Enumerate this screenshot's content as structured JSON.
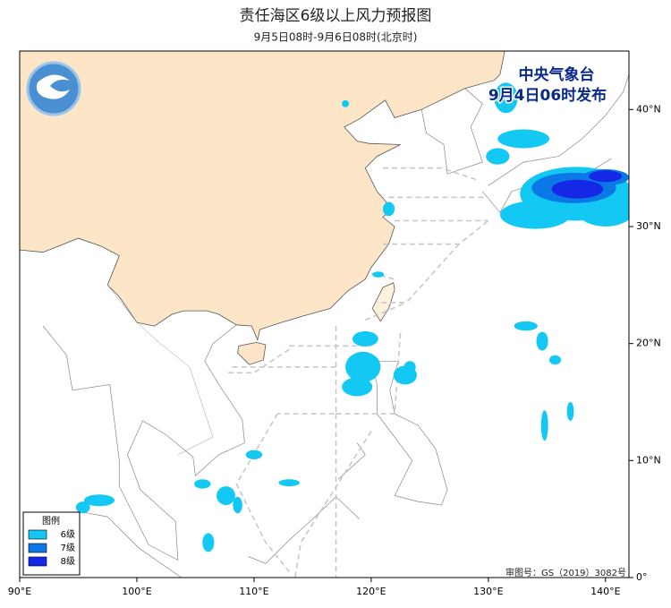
{
  "header": {
    "title": "责任海区6级以上风力预报图",
    "subtitle": "9月5日08时-9月6日08时(北京时)"
  },
  "issuer": {
    "agency": "中央气象台",
    "issued": "9月4日06时发布"
  },
  "map": {
    "lon_range": [
      90,
      142
    ],
    "lat_range": [
      0,
      45
    ],
    "lon_ticks": [
      {
        "value": 90,
        "label": "90°E"
      },
      {
        "value": 100,
        "label": "100°E"
      },
      {
        "value": 110,
        "label": "110°E"
      },
      {
        "value": 120,
        "label": "120°E"
      },
      {
        "value": 130,
        "label": "130°E"
      },
      {
        "value": 140,
        "label": "140°E"
      }
    ],
    "lat_ticks": [
      {
        "value": 0,
        "label": "0°"
      },
      {
        "value": 10,
        "label": "10°N"
      },
      {
        "value": 20,
        "label": "20°N"
      },
      {
        "value": 30,
        "label": "30°N"
      },
      {
        "value": 40,
        "label": "40°N"
      }
    ]
  },
  "legend": {
    "title": "图例",
    "items": [
      {
        "label": "6级",
        "color": "#13c8f2"
      },
      {
        "label": "7级",
        "color": "#0a78e6"
      },
      {
        "label": "8级",
        "color": "#1428e6"
      }
    ]
  },
  "footer": "审图号：GS（2019）3082号"
}
